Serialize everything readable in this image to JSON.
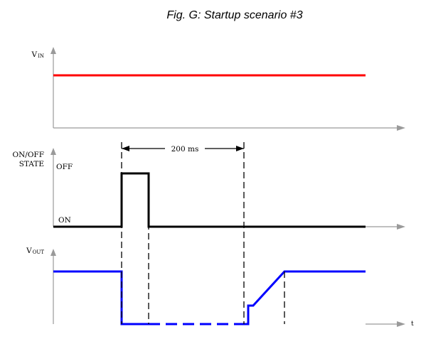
{
  "caption": "Fig. G: Startup scenario #3",
  "dimension_label": "200 ms",
  "vin": {
    "label_main": "V",
    "label_sub": "IN"
  },
  "state": {
    "label_line1": "ON/OFF",
    "label_line2": "STATE",
    "off_label": "OFF",
    "on_label": "ON"
  },
  "vout": {
    "label_main": "V",
    "label_sub": "OUT"
  },
  "time_axis_label": "t",
  "colors": {
    "vin": "#ff0000",
    "state": "#000000",
    "vout": "#0000ff",
    "axis": "#9a9a9a"
  }
}
